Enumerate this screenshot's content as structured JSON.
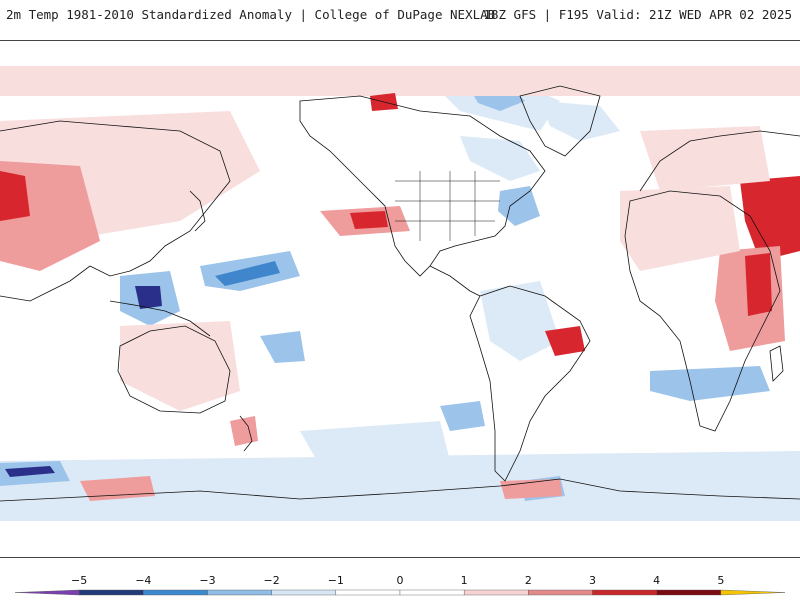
{
  "header": {
    "title_left": "2m Temp 1981-2010 Standardized Anomaly | College of DuPage NEXLAB",
    "title_right": "18Z GFS | F195 Valid: 21Z WED APR 02 2025"
  },
  "legend": {
    "ticks": [
      "−5",
      "−4",
      "−3",
      "−2",
      "−1",
      "0",
      "1",
      "2",
      "3",
      "4",
      "5"
    ],
    "colors": [
      "#7a3fb0",
      "#233a78",
      "#3a8ad0",
      "#8fbde6",
      "#d6e6f5",
      "#ffffff",
      "#ffffff",
      "#f7d2d2",
      "#e28a8a",
      "#c8282c",
      "#7a0a12",
      "#f5c400"
    ]
  },
  "map": {
    "colors": {
      "warm_light": "#f9dede",
      "warm_mid": "#ee9c9c",
      "warm_strong": "#d8262e",
      "warm_extreme": "#8e0a10",
      "cool_light": "#dce9f6",
      "cool_mid": "#9cc4ea",
      "cool_strong": "#3f86cc",
      "cool_extreme": "#2a2f8a",
      "coastline": "#111111"
    }
  }
}
